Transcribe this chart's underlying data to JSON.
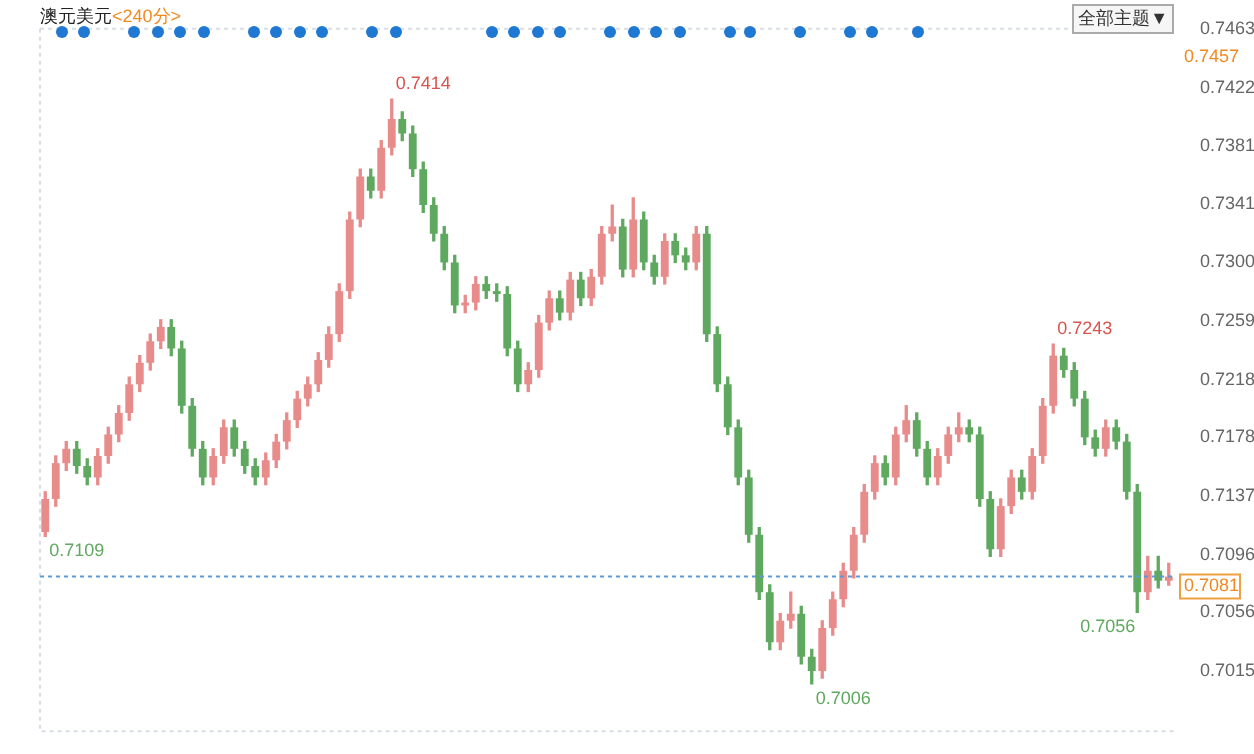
{
  "chart_data": {
    "type": "candlestick",
    "title": "澳元美元",
    "subtitle": "<240分>",
    "categories": [
      null,
      null,
      null,
      null,
      null,
      null,
      null,
      null,
      null,
      null,
      null,
      null,
      null,
      null,
      null,
      null,
      null,
      null,
      null,
      null,
      null,
      null,
      null,
      null,
      null,
      null,
      null,
      null,
      null,
      null,
      null,
      null,
      null,
      null,
      null,
      null,
      null,
      null,
      null,
      null,
      null,
      null,
      null,
      null,
      null,
      null,
      null,
      null,
      null,
      null,
      null,
      null,
      null,
      null,
      null,
      null,
      null,
      null,
      null,
      null,
      null,
      null,
      null,
      null,
      null,
      null,
      null,
      null,
      null,
      null,
      null,
      null,
      null,
      null,
      null,
      null,
      null,
      null,
      null,
      null,
      null,
      null,
      null,
      null,
      null,
      null,
      null,
      null,
      null,
      null,
      null,
      null,
      null,
      null,
      null,
      null,
      null,
      null,
      null,
      null,
      null,
      null,
      null,
      null,
      null,
      null,
      null,
      null
    ],
    "ohlc": [
      [
        0.7112,
        0.714,
        0.7109,
        0.7135
      ],
      [
        0.7135,
        0.7165,
        0.713,
        0.716
      ],
      [
        0.716,
        0.7175,
        0.7155,
        0.717
      ],
      [
        0.717,
        0.7175,
        0.7153,
        0.7158
      ],
      [
        0.7158,
        0.7163,
        0.7145,
        0.715
      ],
      [
        0.715,
        0.717,
        0.7145,
        0.7165
      ],
      [
        0.7165,
        0.7185,
        0.716,
        0.718
      ],
      [
        0.718,
        0.72,
        0.7175,
        0.7195
      ],
      [
        0.7195,
        0.722,
        0.719,
        0.7215
      ],
      [
        0.7215,
        0.7235,
        0.721,
        0.723
      ],
      [
        0.723,
        0.725,
        0.7225,
        0.7245
      ],
      [
        0.7245,
        0.726,
        0.724,
        0.7255
      ],
      [
        0.7255,
        0.726,
        0.7235,
        0.724
      ],
      [
        0.724,
        0.7245,
        0.7195,
        0.72
      ],
      [
        0.72,
        0.7205,
        0.7165,
        0.717
      ],
      [
        0.717,
        0.7175,
        0.7145,
        0.715
      ],
      [
        0.715,
        0.717,
        0.7145,
        0.7165
      ],
      [
        0.7165,
        0.719,
        0.716,
        0.7185
      ],
      [
        0.7185,
        0.719,
        0.7165,
        0.717
      ],
      [
        0.717,
        0.7175,
        0.7153,
        0.7158
      ],
      [
        0.7158,
        0.7163,
        0.7145,
        0.715
      ],
      [
        0.715,
        0.7167,
        0.7145,
        0.7162
      ],
      [
        0.7162,
        0.718,
        0.7157,
        0.7175
      ],
      [
        0.7175,
        0.7195,
        0.717,
        0.719
      ],
      [
        0.719,
        0.721,
        0.7185,
        0.7205
      ],
      [
        0.7205,
        0.722,
        0.72,
        0.7215
      ],
      [
        0.7215,
        0.7237,
        0.721,
        0.7232
      ],
      [
        0.7232,
        0.7255,
        0.7227,
        0.725
      ],
      [
        0.725,
        0.7285,
        0.7245,
        0.728
      ],
      [
        0.728,
        0.7335,
        0.7275,
        0.733
      ],
      [
        0.733,
        0.7365,
        0.7325,
        0.736
      ],
      [
        0.736,
        0.7365,
        0.7345,
        0.735
      ],
      [
        0.735,
        0.7385,
        0.7345,
        0.738
      ],
      [
        0.738,
        0.7414,
        0.7375,
        0.74
      ],
      [
        0.74,
        0.7405,
        0.7385,
        0.739
      ],
      [
        0.739,
        0.7395,
        0.736,
        0.7365
      ],
      [
        0.7365,
        0.737,
        0.7335,
        0.734
      ],
      [
        0.734,
        0.7345,
        0.7315,
        0.732
      ],
      [
        0.732,
        0.7325,
        0.7295,
        0.73
      ],
      [
        0.73,
        0.7305,
        0.7265,
        0.727
      ],
      [
        0.727,
        0.7277,
        0.7265,
        0.7272
      ],
      [
        0.7272,
        0.729,
        0.7267,
        0.7285
      ],
      [
        0.7285,
        0.729,
        0.7275,
        0.728
      ],
      [
        0.728,
        0.7285,
        0.7273,
        0.7278
      ],
      [
        0.7278,
        0.7283,
        0.7235,
        0.724
      ],
      [
        0.724,
        0.7245,
        0.721,
        0.7215
      ],
      [
        0.7215,
        0.723,
        0.721,
        0.7225
      ],
      [
        0.7225,
        0.7263,
        0.722,
        0.7258
      ],
      [
        0.7258,
        0.728,
        0.7253,
        0.7275
      ],
      [
        0.7275,
        0.728,
        0.726,
        0.7265
      ],
      [
        0.7265,
        0.7293,
        0.726,
        0.7288
      ],
      [
        0.7288,
        0.7293,
        0.727,
        0.7275
      ],
      [
        0.7275,
        0.7295,
        0.727,
        0.729
      ],
      [
        0.729,
        0.7325,
        0.7285,
        0.732
      ],
      [
        0.732,
        0.734,
        0.7315,
        0.7325
      ],
      [
        0.7325,
        0.733,
        0.729,
        0.7295
      ],
      [
        0.7295,
        0.7345,
        0.729,
        0.733
      ],
      [
        0.733,
        0.7335,
        0.7295,
        0.73
      ],
      [
        0.73,
        0.7305,
        0.7285,
        0.729
      ],
      [
        0.729,
        0.732,
        0.7285,
        0.7315
      ],
      [
        0.7315,
        0.732,
        0.73,
        0.7305
      ],
      [
        0.7305,
        0.731,
        0.7295,
        0.73
      ],
      [
        0.73,
        0.7325,
        0.7295,
        0.732
      ],
      [
        0.732,
        0.7325,
        0.7245,
        0.725
      ],
      [
        0.725,
        0.7255,
        0.721,
        0.7215
      ],
      [
        0.7215,
        0.722,
        0.718,
        0.7185
      ],
      [
        0.7185,
        0.719,
        0.7145,
        0.715
      ],
      [
        0.715,
        0.7155,
        0.7105,
        0.711
      ],
      [
        0.711,
        0.7115,
        0.7065,
        0.707
      ],
      [
        0.707,
        0.7075,
        0.703,
        0.7035
      ],
      [
        0.7035,
        0.7055,
        0.703,
        0.705
      ],
      [
        0.705,
        0.707,
        0.7045,
        0.7055
      ],
      [
        0.7055,
        0.706,
        0.702,
        0.7025
      ],
      [
        0.7025,
        0.703,
        0.7006,
        0.7015
      ],
      [
        0.7015,
        0.705,
        0.701,
        0.7045
      ],
      [
        0.7045,
        0.707,
        0.704,
        0.7065
      ],
      [
        0.7065,
        0.709,
        0.706,
        0.7085
      ],
      [
        0.7085,
        0.7115,
        0.708,
        0.711
      ],
      [
        0.711,
        0.7145,
        0.7105,
        0.714
      ],
      [
        0.714,
        0.7165,
        0.7135,
        0.716
      ],
      [
        0.716,
        0.7165,
        0.7145,
        0.715
      ],
      [
        0.715,
        0.7185,
        0.7145,
        0.718
      ],
      [
        0.718,
        0.72,
        0.7175,
        0.719
      ],
      [
        0.719,
        0.7195,
        0.7165,
        0.717
      ],
      [
        0.717,
        0.7175,
        0.7145,
        0.715
      ],
      [
        0.715,
        0.717,
        0.7145,
        0.7165
      ],
      [
        0.7165,
        0.7185,
        0.716,
        0.718
      ],
      [
        0.718,
        0.7195,
        0.7175,
        0.7185
      ],
      [
        0.7185,
        0.719,
        0.7175,
        0.718
      ],
      [
        0.718,
        0.7185,
        0.713,
        0.7135
      ],
      [
        0.7135,
        0.714,
        0.7095,
        0.71
      ],
      [
        0.71,
        0.7135,
        0.7095,
        0.713
      ],
      [
        0.713,
        0.7155,
        0.7125,
        0.715
      ],
      [
        0.715,
        0.7155,
        0.7135,
        0.714
      ],
      [
        0.714,
        0.717,
        0.7135,
        0.7165
      ],
      [
        0.7165,
        0.7205,
        0.716,
        0.72
      ],
      [
        0.72,
        0.7243,
        0.7195,
        0.7235
      ],
      [
        0.7235,
        0.724,
        0.722,
        0.7225
      ],
      [
        0.7225,
        0.723,
        0.72,
        0.7205
      ],
      [
        0.7205,
        0.721,
        0.7173,
        0.7178
      ],
      [
        0.7178,
        0.7183,
        0.7165,
        0.717
      ],
      [
        0.717,
        0.719,
        0.7165,
        0.7185
      ],
      [
        0.7185,
        0.719,
        0.717,
        0.7175
      ],
      [
        0.7175,
        0.718,
        0.7135,
        0.714
      ],
      [
        0.714,
        0.7145,
        0.7056,
        0.707
      ],
      [
        0.707,
        0.7095,
        0.7065,
        0.7085
      ],
      [
        0.7085,
        0.7095,
        0.7073,
        0.7078
      ],
      [
        0.7078,
        0.709,
        0.7075,
        0.7081
      ]
    ],
    "ylim": [
      0.6973,
      0.7463
    ],
    "yticks": [
      0.7015,
      0.7056,
      0.7096,
      0.7137,
      0.7178,
      0.7218,
      0.7259,
      {
        "value": 0.73,
        "label": "0.7300"
      },
      0.7341,
      0.7381,
      0.7422,
      0.7463
    ],
    "tick_labels": "y",
    "ref_lines": [
      {
        "axis": "y",
        "value": 0.7081,
        "label": "0.7081",
        "color": "#5b9bd5",
        "line_style": "dotted"
      }
    ],
    "annotations": [
      "0.7414",
      "0.7006",
      "0.7109",
      "0.7243",
      "0.7056",
      "0.7457",
      "全部主题▼"
    ],
    "legend": false,
    "grid": false
  }
}
